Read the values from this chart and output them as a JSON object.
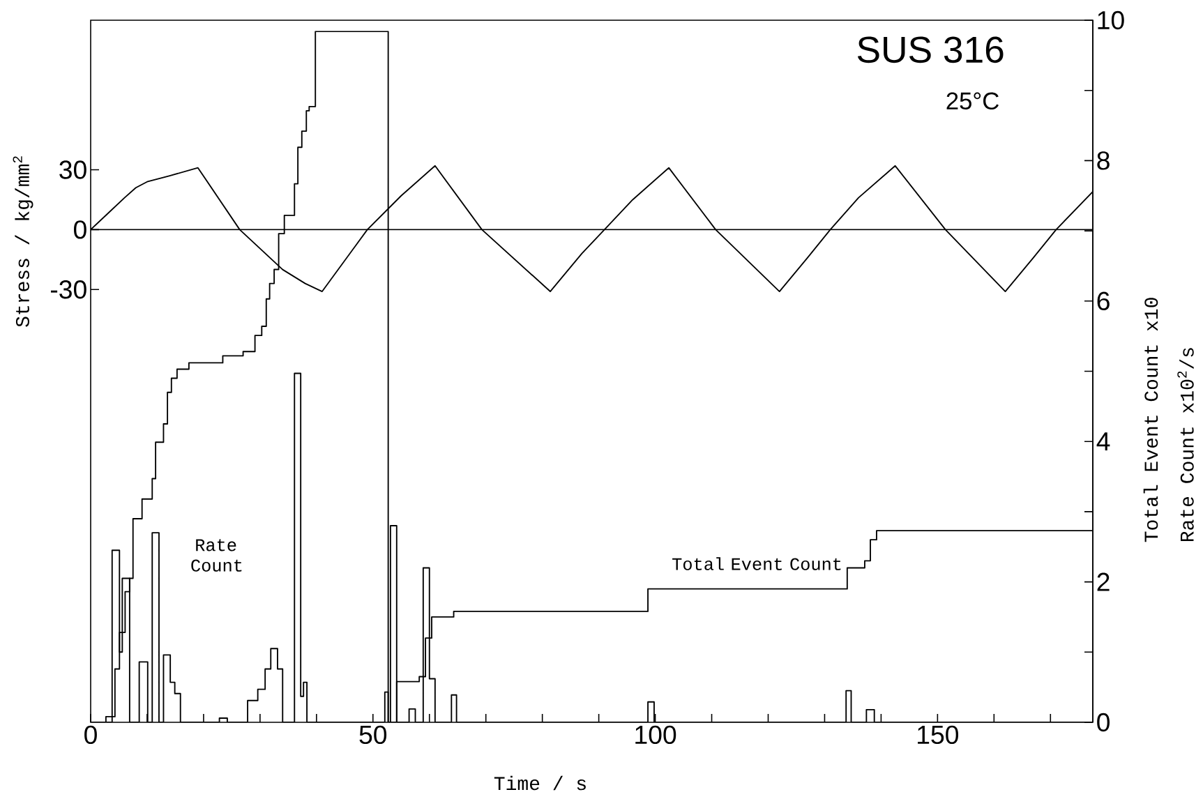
{
  "chart_data": {
    "type": "line",
    "title": "SUS 316",
    "subtitle": "25°C",
    "xlabel": "Time / s",
    "ylabel": "Stress / kg/mm$^{2}$",
    "y2label": "Total Event Count x10",
    "annotations": [
      "Rate Count x10$^{2}$/s"
    ],
    "xlim": [
      0,
      177.5
    ],
    "xticks": [
      0,
      {
        "value": 10,
        "label": null
      },
      {
        "value": 20,
        "label": null
      },
      {
        "value": 30,
        "label": null
      },
      {
        "value": 40,
        "label": null
      },
      50,
      {
        "value": 60,
        "label": null
      },
      {
        "value": 70,
        "label": null
      },
      {
        "value": 80,
        "label": null
      },
      {
        "value": 90,
        "label": null
      },
      100,
      {
        "value": 110,
        "label": null
      },
      {
        "value": 120,
        "label": null
      },
      {
        "value": 130,
        "label": null
      },
      {
        "value": 140,
        "label": null
      },
      150,
      {
        "value": 160,
        "label": null
      },
      {
        "value": 170,
        "label": null
      }
    ],
    "ylim": [
      -247,
      105
    ],
    "yticks": [
      -30,
      0,
      30
    ],
    "y2lim": [
      0,
      10
    ],
    "y2ticks": [
      0,
      {
        "value": 1,
        "label": null
      },
      2,
      {
        "value": 3,
        "label": null
      },
      4,
      {
        "value": 5,
        "label": null
      },
      6,
      {
        "value": 7,
        "label": null
      },
      8,
      {
        "value": 9,
        "label": null
      },
      10
    ],
    "ref_lines": [
      {
        "axis": "y",
        "value": 0
      }
    ],
    "marker": "none",
    "line_style": "solid",
    "series": [
      {
        "axis": "y",
        "color": "#000000",
        "x": [
          0,
          3,
          6,
          8,
          10,
          14,
          19,
          26.4,
          34,
          38,
          41,
          49,
          55,
          61,
          69.3,
          81.4,
          87,
          91,
          96,
          102.4,
          110.7,
          122,
          127,
          131,
          136,
          142.5,
          151.4,
          162,
          167,
          171,
          177.5
        ],
        "values": [
          0,
          8,
          16,
          21,
          24,
          27,
          31,
          0,
          -20,
          -27,
          -31,
          0,
          17,
          32,
          0,
          -31,
          -12,
          0,
          15,
          31,
          0,
          -31,
          -14,
          0,
          16,
          32,
          0,
          -31,
          -14,
          0,
          19
        ]
      },
      {
        "name": "Rate Count",
        "type": "step",
        "axis": "y2",
        "color": "#000000",
        "x": [
          0,
          2.7,
          3.8,
          5.1,
          5.6,
          6.9,
          8.6,
          10.1,
          10.9,
          12.1,
          12.9,
          14.1,
          14.9,
          15.9,
          22.8,
          24.2,
          27.8,
          29.6,
          30.9,
          31.9,
          33.1,
          34.0,
          36.1,
          37.2,
          37.7,
          38.3,
          52.1,
          52.7,
          53.1,
          54.2,
          56.4,
          57.5,
          58.9,
          60.0,
          61.0,
          63.9,
          64.8,
          98.7,
          99.8,
          133.8,
          134.7,
          137.4,
          138.8,
          177.5
        ],
        "values": [
          0,
          0.08,
          2.45,
          1.0,
          2.05,
          0,
          0.86,
          0,
          2.7,
          0,
          0.96,
          0.57,
          0.41,
          0,
          0.06,
          0,
          0.31,
          0.47,
          0.76,
          1.05,
          0.76,
          0,
          4.97,
          0.37,
          0.57,
          0,
          0.43,
          0,
          2.8,
          0,
          0.19,
          0,
          2.2,
          0.62,
          0,
          0.39,
          0,
          0.29,
          0,
          0.45,
          0,
          0.18,
          0,
          0
        ]
      },
      {
        "name": "Total Event Count",
        "type": "step",
        "axis": "y2",
        "color": "#000000",
        "x": [
          0,
          3.8,
          4.3,
          5.1,
          6.1,
          6.9,
          7.5,
          9.1,
          10.9,
          11.5,
          12.9,
          13.6,
          14.3,
          15.3,
          17.4,
          23.4,
          27.0,
          29.1,
          30.3,
          31.1,
          31.7,
          32.5,
          33.3,
          34.3,
          36.1,
          36.7,
          37.4,
          38.2,
          38.7,
          39.8,
          52.7,
          54.2,
          58.2,
          59.3,
          60.4,
          64.3,
          98.7,
          134,
          137.1,
          138.1,
          139.2,
          177.5
        ],
        "values": [
          0,
          0.08,
          0.76,
          1.28,
          1.86,
          2.05,
          2.9,
          3.18,
          3.47,
          3.99,
          4.25,
          4.7,
          4.9,
          5.03,
          5.12,
          5.22,
          5.28,
          5.51,
          5.64,
          6.03,
          6.25,
          6.45,
          6.96,
          7.22,
          7.67,
          8.19,
          8.42,
          8.71,
          8.77,
          9.84,
          0,
          0.58,
          0.65,
          1.2,
          1.5,
          1.58,
          1.9,
          2.2,
          2.3,
          2.6,
          2.73,
          2.73
        ]
      }
    ]
  }
}
